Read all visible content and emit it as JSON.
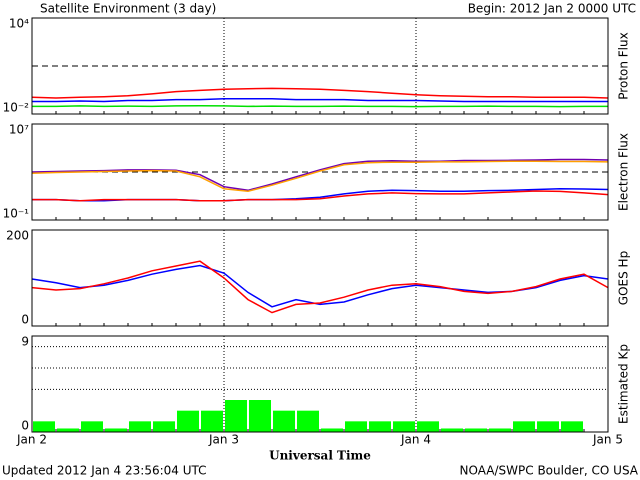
{
  "page": {
    "title": "Satellite Environment (3 day)",
    "begin": "Begin:  2012 Jan 2 0000 UTC",
    "xlabel": "Universal Time",
    "updated": "Updated 2012 Jan  4 23:56:04 UTC",
    "credit": "NOAA/SWPC Boulder, CO USA",
    "xlim": [
      0,
      72
    ],
    "xticks": [
      {
        "value": 0,
        "label": "Jan 2"
      },
      {
        "value": 24,
        "label": "Jan 3"
      },
      {
        "value": 48,
        "label": "Jan 4"
      },
      {
        "value": 72,
        "label": "Jan 5"
      }
    ]
  },
  "chart_data": [
    {
      "type": "line",
      "ylabel": "Proton Flux",
      "log": true,
      "ylim": [
        0.01,
        10000
      ],
      "yticks": [
        {
          "value": 0.01,
          "label": "10⁻²"
        },
        {
          "value": 10000,
          "label": "10⁴"
        }
      ],
      "hlines": [
        10
      ],
      "hline_style": "dashed",
      "x": [
        0,
        3,
        6,
        9,
        12,
        15,
        18,
        21,
        24,
        27,
        30,
        33,
        36,
        39,
        42,
        45,
        48,
        51,
        54,
        57,
        60,
        63,
        66,
        69,
        72
      ],
      "series": [
        {
          "color": "#00e000",
          "values": [
            0.03,
            0.03,
            0.032,
            0.03,
            0.031,
            0.03,
            0.032,
            0.033,
            0.032,
            0.03,
            0.031,
            0.03,
            0.03,
            0.031,
            0.03,
            0.03,
            0.029,
            0.03,
            0.03,
            0.031,
            0.03,
            0.03,
            0.029,
            0.03,
            0.03
          ]
        },
        {
          "color": "#0000ff",
          "values": [
            0.06,
            0.06,
            0.065,
            0.06,
            0.07,
            0.07,
            0.08,
            0.08,
            0.09,
            0.09,
            0.09,
            0.08,
            0.08,
            0.08,
            0.07,
            0.07,
            0.07,
            0.065,
            0.06,
            0.06,
            0.06,
            0.06,
            0.06,
            0.06,
            0.06
          ]
        },
        {
          "color": "#ff0000",
          "values": [
            0.11,
            0.1,
            0.11,
            0.12,
            0.14,
            0.18,
            0.25,
            0.3,
            0.35,
            0.38,
            0.4,
            0.38,
            0.35,
            0.3,
            0.25,
            0.2,
            0.16,
            0.14,
            0.13,
            0.12,
            0.12,
            0.11,
            0.11,
            0.11,
            0.1
          ]
        }
      ]
    },
    {
      "type": "line",
      "ylabel": "Electron Flux",
      "log": true,
      "ylim": [
        0.1,
        10000000
      ],
      "yticks": [
        {
          "value": 0.1,
          "label": "10⁻¹"
        },
        {
          "value": 10000000,
          "label": "10⁷"
        }
      ],
      "hlines": [
        1000
      ],
      "hline_style": "dashed",
      "x": [
        0,
        3,
        6,
        9,
        12,
        15,
        18,
        21,
        24,
        27,
        30,
        33,
        36,
        39,
        42,
        45,
        48,
        51,
        54,
        57,
        60,
        63,
        66,
        69,
        72
      ],
      "series": [
        {
          "color": "#0000ff",
          "values": [
            5,
            5,
            4,
            4,
            5,
            5,
            5,
            4,
            4,
            5,
            5,
            6,
            8,
            15,
            25,
            30,
            28,
            25,
            25,
            28,
            30,
            35,
            40,
            38,
            35
          ]
        },
        {
          "color": "#ff0000",
          "values": [
            5,
            5,
            4,
            5,
            5,
            5,
            5,
            4,
            4,
            5,
            5,
            5,
            6,
            10,
            15,
            18,
            16,
            15,
            15,
            18,
            22,
            26,
            24,
            18,
            13
          ]
        },
        {
          "color": "#7000b0",
          "values": [
            1000,
            1100,
            1200,
            1300,
            1500,
            1500,
            1400,
            600,
            60,
            30,
            100,
            400,
            1500,
            5000,
            8000,
            8500,
            8000,
            8000,
            9000,
            9000,
            9500,
            10000,
            11000,
            11000,
            10000
          ]
        },
        {
          "color": "#ffa000",
          "values": [
            800,
            900,
            1000,
            1100,
            1200,
            1300,
            1200,
            400,
            40,
            25,
            80,
            300,
            1200,
            4000,
            6000,
            6500,
            6500,
            7000,
            7000,
            7500,
            8000,
            8000,
            7500,
            7500,
            7000
          ]
        }
      ]
    },
    {
      "type": "line",
      "ylabel": "GOES Hp",
      "log": false,
      "ylim": [
        0,
        200
      ],
      "yticks": [
        0,
        200
      ],
      "x": [
        0,
        3,
        6,
        9,
        12,
        15,
        18,
        21,
        24,
        27,
        30,
        33,
        36,
        39,
        42,
        45,
        48,
        51,
        54,
        57,
        60,
        63,
        66,
        69,
        72
      ],
      "series": [
        {
          "color": "#0000ff",
          "values": [
            98,
            90,
            80,
            85,
            95,
            108,
            118,
            126,
            110,
            70,
            40,
            55,
            45,
            50,
            65,
            78,
            85,
            80,
            75,
            70,
            72,
            80,
            95,
            105,
            98
          ]
        },
        {
          "color": "#ff0000",
          "values": [
            80,
            75,
            78,
            88,
            100,
            115,
            125,
            135,
            100,
            55,
            28,
            45,
            48,
            60,
            75,
            85,
            88,
            82,
            72,
            68,
            72,
            82,
            98,
            108,
            80
          ]
        }
      ]
    },
    {
      "type": "bar",
      "ylabel": "Estimated Kp",
      "log": false,
      "ylim": [
        0,
        9
      ],
      "yticks": [
        0,
        9
      ],
      "hlines": [
        4,
        6,
        8
      ],
      "hline_style": "dotted",
      "bar_width": 3,
      "color": "#00ff00",
      "x": [
        1.5,
        4.5,
        7.5,
        10.5,
        13.5,
        16.5,
        19.5,
        22.5,
        25.5,
        28.5,
        31.5,
        34.5,
        37.5,
        40.5,
        43.5,
        46.5,
        49.5,
        52.5,
        55.5,
        58.5,
        61.5,
        64.5,
        67.5,
        70.5
      ],
      "values": [
        1,
        0.33,
        1,
        0.33,
        1,
        1,
        2,
        2,
        3,
        3,
        2,
        2,
        0.33,
        1,
        1,
        1,
        1,
        0.33,
        0.33,
        0.33,
        1,
        1,
        1,
        null
      ]
    }
  ]
}
